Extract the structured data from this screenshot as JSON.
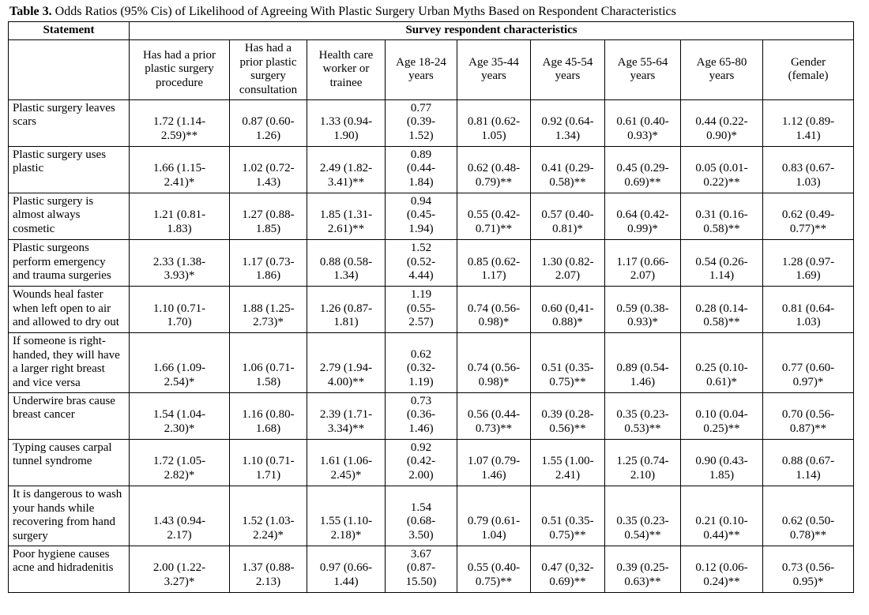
{
  "title": {
    "label": "Table 3.",
    "text": "Odds Ratios (95% Cis) of Likelihood of Agreeing With Plastic Surgery Urban Myths Based on Respondent Characteristics"
  },
  "table": {
    "statement_header": "Statement",
    "group_header": "Survey respondent characteristics",
    "columns": [
      "Has had a prior plastic surgery procedure",
      "Has had a prior plastic surgery consultation",
      "Health care worker or trainee",
      "Age 18-24 years",
      "Age 35-44 years",
      "Age 45-54 years",
      "Age 55-64 years",
      "Age 65-80 years",
      "Gender (female)"
    ],
    "rows": [
      {
        "statement": "Plastic surgery leaves scars",
        "values": [
          "1.72 (1.14-2.59)**",
          "0.87 (0.60-1.26)",
          "1.33 (0.94-1.90)",
          "0.77 (0.39-1.52)",
          "0.81 (0.62-1.05)",
          "0.92 (0.64-1.34)",
          "0.61 (0.40-0.93)*",
          "0.44 (0.22-0.90)*",
          "1.12 (0.89-1.41)"
        ]
      },
      {
        "statement": "Plastic surgery uses plastic",
        "values": [
          "1.66 (1.15-2.41)*",
          "1.02 (0.72-1.43)",
          "2.49 (1.82-3.41)**",
          "0.89 (0.44-1.84)",
          "0.62 (0.48-0.79)**",
          "0.41 (0.29-0.58)**",
          "0.45 (0.29-0.69)**",
          "0.05 (0.01-0.22)**",
          "0.83 (0.67-1.03)"
        ]
      },
      {
        "statement": "Plastic surgery is almost always cosmetic",
        "values": [
          "1.21 (0.81-1.83)",
          "1.27 (0.88-1.85)",
          "1.85 (1.31-2.61)**",
          "0.94 (0.45-1.94)",
          "0.55 (0.42-0.71)**",
          "0.57 (0.40-0.81)*",
          "0.64 (0.42-0.99)*",
          "0.31 (0.16-0.58)**",
          "0.62 (0.49-0.77)**"
        ]
      },
      {
        "statement": "Plastic surgeons perform emergency and trauma surgeries",
        "values": [
          "2.33 (1.38-3.93)*",
          "1.17 (0.73-1.86)",
          "0.88 (0.58-1.34)",
          "1.52 (0.52-4.44)",
          "0.85 (0.62-1.17)",
          "1.30 (0.82-2.07)",
          "1.17 (0.66-2.07)",
          "0.54 (0.26-1.14)",
          "1.28 (0.97-1.69)"
        ]
      },
      {
        "statement": "Wounds heal faster when left open to air and allowed to dry out",
        "values": [
          "1.10 (0.71-1.70)",
          "1.88 (1.25-2.73)*",
          "1.26 (0.87-1.81)",
          "1.19 (0.55-2.57)",
          "0.74 (0.56-0.98)*",
          "0.60 (0,41-0.88)*",
          "0.59 (0.38-0.93)*",
          "0.28 (0.14-0.58)**",
          "0.81 (0.64-1.03)"
        ]
      },
      {
        "statement": "If someone is right-handed, they will have a larger right breast and vice versa",
        "values": [
          "1.66 (1.09-2.54)*",
          "1.06 (0.71-1.58)",
          "2.79 (1.94-4.00)**",
          "0.62 (0.32-1.19)",
          "0.74 (0.56-0.98)*",
          "0.51 (0.35-0.75)**",
          "0.89 (0.54-1.46)",
          "0.25 (0.10-0.61)*",
          "0.77 (0.60-0.97)*"
        ]
      },
      {
        "statement": "Underwire bras cause breast cancer",
        "values": [
          "1.54 (1.04-2.30)*",
          "1.16 (0.80-1.68)",
          "2.39 (1.71-3.34)**",
          "0.73 (0.36-1.46)",
          "0.56 (0.44-0.73)**",
          "0.39 (0.28-0.56)**",
          "0.35 (0.23-0.53)**",
          "0.10 (0.04-0.25)**",
          "0.70 (0.56-0.87)**"
        ]
      },
      {
        "statement": "Typing causes carpal tunnel syndrome",
        "values": [
          "1.72 (1.05-2.82)*",
          "1.10 (0.71-1.71)",
          "1.61 (1.06-2.45)*",
          "0.92 (0.42-2.00)",
          "1.07 (0.79-1.46)",
          "1.55 (1.00-2.41)",
          "1.25 (0.74-2.10)",
          "0.90 (0.43-1.85)",
          "0.88 (0.67-1.14)"
        ]
      },
      {
        "statement": "It is dangerous to wash your hands while recovering from hand surgery",
        "values": [
          "1.43 (0.94-2.17)",
          "1.52 (1.03-2.24)*",
          "1.55 (1.10-2.18)*",
          "1.54 (0.68-3.50)",
          "0.79 (0.61-1.04)",
          "0.51 (0.35-0.75)**",
          "0.35 (0.23-0.54)**",
          "0.21 (0.10-0.44)**",
          "0.62 (0.50-0.78)**"
        ]
      },
      {
        "statement": "Poor hygiene causes acne and hidradenitis",
        "values": [
          "2.00 (1.22-3.27)*",
          "1.37 (0.88-2.13)",
          "0.97 (0.66-1.44)",
          "3.67 (0.87-15.50)",
          "0.55 (0.40-0.75)**",
          "0.47 (0,32-0.69)**",
          "0.39 (0.25-0.63)**",
          "0.12 (0.06-0.24)**",
          "0.73 (0.56-0.95)*"
        ]
      }
    ]
  }
}
